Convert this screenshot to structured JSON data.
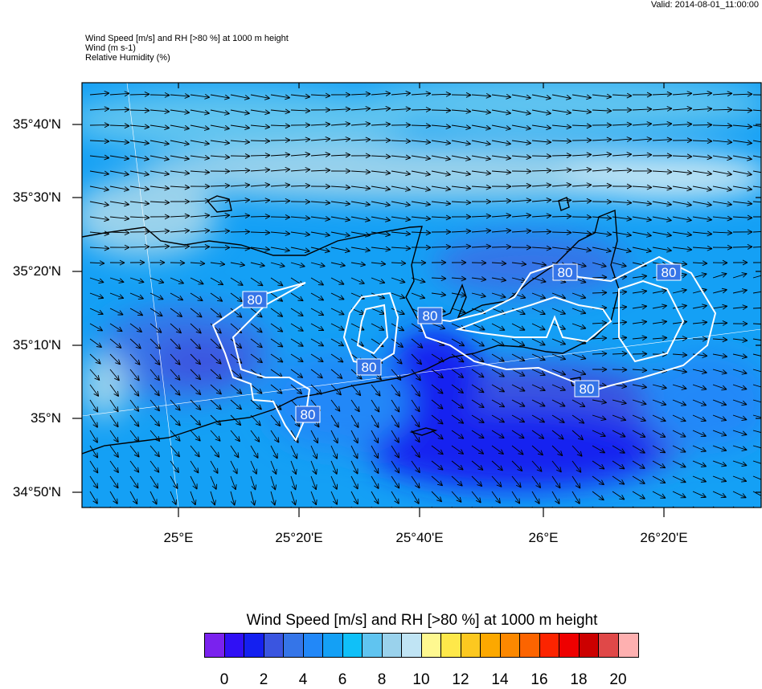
{
  "valid_time": "Valid: 2014-08-01_11:00:00",
  "header": {
    "line1": "Wind Speed [m/s] and RH [>80 %] at 1000 m height",
    "line2": "Wind   (m s-1)",
    "line3": "Relative Humidity   (%)"
  },
  "map": {
    "lat_labels": [
      "35°40'N",
      "35°30'N",
      "35°20'N",
      "35°10'N",
      "35°N",
      "34°50'N"
    ],
    "lon_labels": [
      "25°E",
      "25°20'E",
      "25°40'E",
      "26°E",
      "26°20'E"
    ],
    "contour_level": "80",
    "contour_labels": [
      "80",
      "80",
      "80",
      "80",
      "80",
      "80",
      "80"
    ],
    "wind_pattern": "westerly in north turning north-westerly to south",
    "colors": {
      "coast": "#000000",
      "contour": "#ffffff"
    }
  },
  "colorbar": {
    "title": "Wind Speed [m/s] and RH [>80 %] at 1000 m height",
    "colors": [
      "#7a22ee",
      "#3010f5",
      "#1420f0",
      "#3a55e0",
      "#3575e8",
      "#2288f8",
      "#14a0f5",
      "#10c0f8",
      "#60c4f0",
      "#9ad2ec",
      "#c0e4f4",
      "#fef890",
      "#fee84a",
      "#fcc820",
      "#fca800",
      "#fc8800",
      "#fc6400",
      "#fc2400",
      "#ee0000",
      "#cc0000",
      "#e04848",
      "#feb0b0"
    ],
    "labels": [
      "0",
      "2",
      "4",
      "6",
      "8",
      "10",
      "12",
      "14",
      "16",
      "18",
      "20"
    ]
  }
}
